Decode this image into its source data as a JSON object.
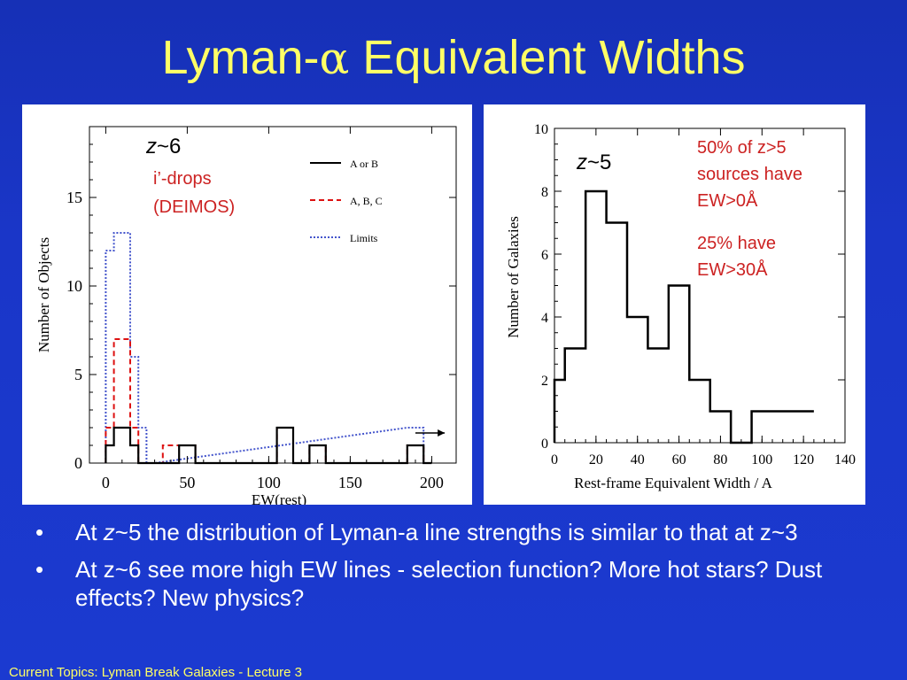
{
  "slide": {
    "title_prefix": "Lyman-",
    "title_greek": "α",
    "title_suffix": " Equivalent Widths",
    "footer": "Current Topics:  Lyman Break Galaxies - Lecture 3"
  },
  "bullets": [
    {
      "marker": "•",
      "prefix": "At ",
      "italic": "z",
      "text": "~5 the distribution of Lyman-a line strengths is similar to that at z~3"
    },
    {
      "marker": "•",
      "prefix": "",
      "italic": "",
      "text": "At z~6 see more high EW lines - selection function? More hot stars? Dust effects? New physics?"
    }
  ],
  "chart_data": [
    {
      "type": "line",
      "annotations": {
        "redshift_italic": "z",
        "redshift_rest": "~6",
        "note_line1": "i’-drops",
        "note_line2": "(DEIMOS)"
      },
      "xlabel": "EW(rest)",
      "ylabel": "Number of Objects",
      "xlim": [
        -10,
        215
      ],
      "ylim": [
        0,
        19
      ],
      "xticks": [
        "0",
        "50",
        "100",
        "150",
        "200"
      ],
      "yticks": [
        "0",
        "5",
        "10",
        "15"
      ],
      "legend_position": "top-right",
      "series": [
        {
          "name": "A or B",
          "color": "#000000",
          "dash": "none",
          "bins": [
            [
              0,
              5,
              1
            ],
            [
              5,
              10,
              2
            ],
            [
              10,
              15,
              2
            ],
            [
              15,
              20,
              1
            ],
            [
              20,
              25,
              0
            ],
            [
              25,
              45,
              0
            ],
            [
              45,
              55,
              1
            ],
            [
              55,
              105,
              0
            ],
            [
              105,
              115,
              2
            ],
            [
              115,
              125,
              0
            ],
            [
              125,
              135,
              1
            ],
            [
              135,
              185,
              0
            ],
            [
              185,
              195,
              1
            ],
            [
              195,
              200,
              0
            ]
          ]
        },
        {
          "name": "A, B, C",
          "color": "#dd1111",
          "dash": "6,4",
          "bins": [
            [
              0,
              5,
              2
            ],
            [
              5,
              15,
              7
            ],
            [
              15,
              20,
              2
            ],
            [
              20,
              25,
              0
            ],
            [
              25,
              35,
              0
            ],
            [
              35,
              55,
              1
            ],
            [
              55,
              105,
              0
            ],
            [
              105,
              115,
              2
            ],
            [
              115,
              125,
              0
            ],
            [
              125,
              135,
              1
            ],
            [
              135,
              185,
              0
            ],
            [
              185,
              195,
              1
            ],
            [
              195,
              200,
              0
            ]
          ]
        },
        {
          "name": "Limits",
          "color": "#4455cc",
          "dash": "2,2",
          "bins": [
            [
              0,
              5,
              12
            ],
            [
              5,
              15,
              13
            ],
            [
              15,
              20,
              6
            ],
            [
              20,
              25,
              2
            ],
            [
              25,
              30,
              0
            ],
            [
              185,
              195,
              2
            ],
            [
              195,
              200,
              0
            ]
          ]
        }
      ]
    },
    {
      "type": "line",
      "annotations": {
        "redshift_italic": "z",
        "redshift_rest": "~5",
        "note1_lines": [
          "50% of z>5",
          "sources have",
          "EW>0Å"
        ],
        "note2_lines": [
          "25% have",
          "EW>30Å"
        ]
      },
      "xlabel": "Rest-frame Equivalent Width / A",
      "ylabel": "Number of Galaxies",
      "xlim": [
        0,
        140
      ],
      "ylim": [
        0,
        10
      ],
      "xticks": [
        "0",
        "20",
        "40",
        "60",
        "80",
        "100",
        "120",
        "140"
      ],
      "yticks": [
        "0",
        "2",
        "4",
        "6",
        "8",
        "10"
      ],
      "bins": [
        [
          0,
          5,
          2
        ],
        [
          5,
          15,
          3
        ],
        [
          15,
          25,
          8
        ],
        [
          25,
          35,
          7
        ],
        [
          35,
          45,
          4
        ],
        [
          45,
          55,
          3
        ],
        [
          55,
          65,
          5
        ],
        [
          65,
          75,
          2
        ],
        [
          75,
          85,
          1
        ],
        [
          85,
          95,
          0
        ],
        [
          95,
          125,
          1
        ]
      ]
    }
  ]
}
